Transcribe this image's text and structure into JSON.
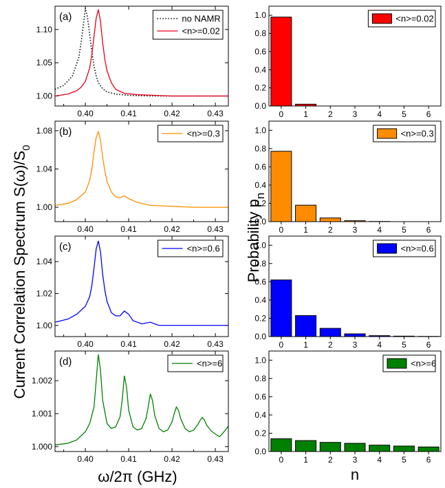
{
  "chart_data": [
    {
      "type": "line",
      "panel_label": "(a)",
      "xlim": [
        0.393,
        0.433
      ],
      "ylim": [
        0.985,
        1.135
      ],
      "xticks": [
        "0.40",
        "0.41",
        "0.42",
        "0.43"
      ],
      "yticks": [
        "1.00",
        "1.05",
        "1.10"
      ],
      "legend_position": "top-right",
      "series": [
        {
          "name": "no NAMR",
          "color": "#000000",
          "style": "dotted",
          "x": [
            0.393,
            0.395,
            0.397,
            0.3985,
            0.399,
            0.3995,
            0.4,
            0.4005,
            0.401,
            0.4015,
            0.402,
            0.4025,
            0.403,
            0.404,
            0.405,
            0.407,
            0.41,
            0.415,
            0.42,
            0.425,
            0.433
          ],
          "y": [
            1.01,
            1.016,
            1.03,
            1.058,
            1.08,
            1.105,
            1.132,
            1.118,
            1.092,
            1.066,
            1.045,
            1.03,
            1.02,
            1.011,
            1.006,
            1.003,
            1.001,
            1.0,
            1.0,
            1.0,
            1.0
          ]
        },
        {
          "name": "<n>=0.02",
          "color": "#e3001b",
          "style": "solid",
          "x": [
            0.393,
            0.396,
            0.398,
            0.399,
            0.4,
            0.401,
            0.4015,
            0.402,
            0.4025,
            0.403,
            0.4035,
            0.404,
            0.4045,
            0.405,
            0.406,
            0.407,
            0.409,
            0.412,
            0.416,
            0.42,
            0.425,
            0.433
          ],
          "y": [
            1.0,
            1.003,
            1.008,
            1.013,
            1.022,
            1.042,
            1.062,
            1.09,
            1.117,
            1.13,
            1.112,
            1.08,
            1.055,
            1.038,
            1.02,
            1.01,
            1.004,
            1.002,
            1.001,
            1.0,
            1.0,
            1.0
          ]
        }
      ]
    },
    {
      "type": "line",
      "panel_label": "(b)",
      "xlim": [
        0.393,
        0.433
      ],
      "ylim": [
        0.985,
        1.09
      ],
      "xticks": [
        "0.40",
        "0.41",
        "0.42",
        "0.43"
      ],
      "yticks": [
        "1.00",
        "1.04",
        "1.08"
      ],
      "legend_position": "top-right",
      "series": [
        {
          "name": "<n>=0.3",
          "color": "#ff8c00",
          "style": "solid",
          "x": [
            0.393,
            0.396,
            0.398,
            0.4,
            0.401,
            0.4015,
            0.402,
            0.4025,
            0.403,
            0.4035,
            0.404,
            0.4045,
            0.405,
            0.406,
            0.407,
            0.408,
            0.409,
            0.41,
            0.412,
            0.415,
            0.42,
            0.425,
            0.433
          ],
          "y": [
            1.002,
            1.004,
            1.008,
            1.016,
            1.028,
            1.04,
            1.058,
            1.073,
            1.079,
            1.07,
            1.052,
            1.038,
            1.027,
            1.016,
            1.011,
            1.01,
            1.012,
            1.009,
            1.005,
            1.002,
            1.001,
            1.0,
            1.0
          ]
        }
      ]
    },
    {
      "type": "line",
      "panel_label": "(c)",
      "xlim": [
        0.393,
        0.433
      ],
      "ylim": [
        0.993,
        1.056
      ],
      "xticks": [
        "0.40",
        "0.41",
        "0.42",
        "0.43"
      ],
      "yticks": [
        "1.00",
        "1.02",
        "1.04"
      ],
      "legend_position": "top-right",
      "series": [
        {
          "name": "<n>=0.6",
          "color": "#0000ff",
          "style": "solid",
          "x": [
            0.393,
            0.396,
            0.398,
            0.4,
            0.401,
            0.4015,
            0.402,
            0.4025,
            0.403,
            0.4035,
            0.404,
            0.4045,
            0.405,
            0.406,
            0.407,
            0.408,
            0.409,
            0.41,
            0.411,
            0.413,
            0.415,
            0.417,
            0.42,
            0.425,
            0.433
          ],
          "y": [
            1.002,
            1.004,
            1.007,
            1.012,
            1.018,
            1.025,
            1.036,
            1.048,
            1.053,
            1.046,
            1.032,
            1.022,
            1.015,
            1.008,
            1.006,
            1.006,
            1.009,
            1.007,
            1.003,
            1.001,
            1.002,
            1.0,
            1.0,
            1.0,
            1.0
          ]
        }
      ]
    },
    {
      "type": "line",
      "panel_label": "(d)",
      "xlim": [
        0.393,
        0.433
      ],
      "ylim": [
        0.99985,
        1.0029
      ],
      "xticks": [
        "0.40",
        "0.41",
        "0.42",
        "0.43"
      ],
      "yticks": [
        "1.000",
        "1.001",
        "1.002"
      ],
      "legend_position": "top-right",
      "series": [
        {
          "name": "<n>=6",
          "color": "#008000",
          "style": "solid",
          "x": [
            0.393,
            0.396,
            0.398,
            0.4,
            0.401,
            0.402,
            0.4025,
            0.403,
            0.4035,
            0.404,
            0.405,
            0.406,
            0.407,
            0.408,
            0.4085,
            0.409,
            0.4095,
            0.41,
            0.411,
            0.412,
            0.413,
            0.414,
            0.4145,
            0.415,
            0.4155,
            0.416,
            0.417,
            0.418,
            0.419,
            0.42,
            0.4205,
            0.421,
            0.4215,
            0.422,
            0.423,
            0.424,
            0.425,
            0.426,
            0.4265,
            0.427,
            0.4275,
            0.428,
            0.429,
            0.43,
            0.431,
            0.432,
            0.433
          ],
          "y": [
            1.00005,
            1.0001,
            1.0002,
            1.00045,
            1.0007,
            1.0012,
            1.002,
            1.0028,
            1.0023,
            1.0014,
            1.0007,
            1.00055,
            1.0006,
            1.0009,
            1.0014,
            1.00215,
            1.0018,
            1.0011,
            1.0006,
            1.0005,
            1.00055,
            1.00085,
            1.0012,
            1.0016,
            1.0014,
            1.00095,
            1.00055,
            1.00045,
            1.0005,
            1.00075,
            1.001,
            1.0012,
            1.0011,
            1.00085,
            1.00055,
            1.00045,
            1.0005,
            1.00068,
            1.0008,
            1.00088,
            1.0008,
            1.00065,
            1.00048,
            1.00038,
            1.0003,
            1.00045,
            1.00062
          ]
        }
      ]
    },
    {
      "type": "bar",
      "categories": [
        "0",
        "1",
        "2",
        "3",
        "4",
        "5",
        "6"
      ],
      "ylim": [
        0,
        1.1
      ],
      "yticks": [
        "0.0",
        "0.2",
        "0.4",
        "0.6",
        "0.8",
        "1.0"
      ],
      "legend_position": "top-right",
      "series": [
        {
          "name": "<n>=0.02",
          "color": "#ff0000",
          "values": [
            0.98,
            0.02,
            0.0,
            0.0,
            0.0,
            0.0,
            0.0
          ]
        }
      ]
    },
    {
      "type": "bar",
      "categories": [
        "0",
        "1",
        "2",
        "3",
        "4",
        "5",
        "6"
      ],
      "ylim": [
        0,
        1.1
      ],
      "yticks": [
        "0.0",
        "0.2",
        "0.4",
        "0.6",
        "0.8",
        "1.0"
      ],
      "legend_position": "top-right",
      "series": [
        {
          "name": "<n>=0.3",
          "color": "#ff8c00",
          "values": [
            0.77,
            0.18,
            0.04,
            0.01,
            0.002,
            0.0,
            0.0
          ]
        }
      ]
    },
    {
      "type": "bar",
      "categories": [
        "0",
        "1",
        "2",
        "3",
        "4",
        "5",
        "6"
      ],
      "ylim": [
        0,
        1.1
      ],
      "yticks": [
        "0.0",
        "0.2",
        "0.4",
        "0.6",
        "0.8",
        "1.0"
      ],
      "legend_position": "top-right",
      "series": [
        {
          "name": "<n>=0.6",
          "color": "#0000ff",
          "values": [
            0.62,
            0.23,
            0.09,
            0.03,
            0.01,
            0.005,
            0.002
          ]
        }
      ]
    },
    {
      "type": "bar",
      "categories": [
        "0",
        "1",
        "2",
        "3",
        "4",
        "5",
        "6"
      ],
      "ylim": [
        0,
        1.1
      ],
      "yticks": [
        "0.0",
        "0.2",
        "0.4",
        "0.6",
        "0.8",
        "1.0"
      ],
      "legend_position": "top-right",
      "series": [
        {
          "name": "<n>=6",
          "color": "#008000",
          "values": [
            0.14,
            0.12,
            0.1,
            0.09,
            0.07,
            0.06,
            0.05
          ]
        }
      ]
    }
  ],
  "labels": {
    "left_ylabel": "Current Correlation Spectrum S(ω)/S",
    "left_ylabel_sub": "0",
    "left_xlabel": "ω/2π (GHz)",
    "right_ylabel": "Probability p",
    "right_ylabel_sub": "n",
    "right_xlabel": "n"
  }
}
